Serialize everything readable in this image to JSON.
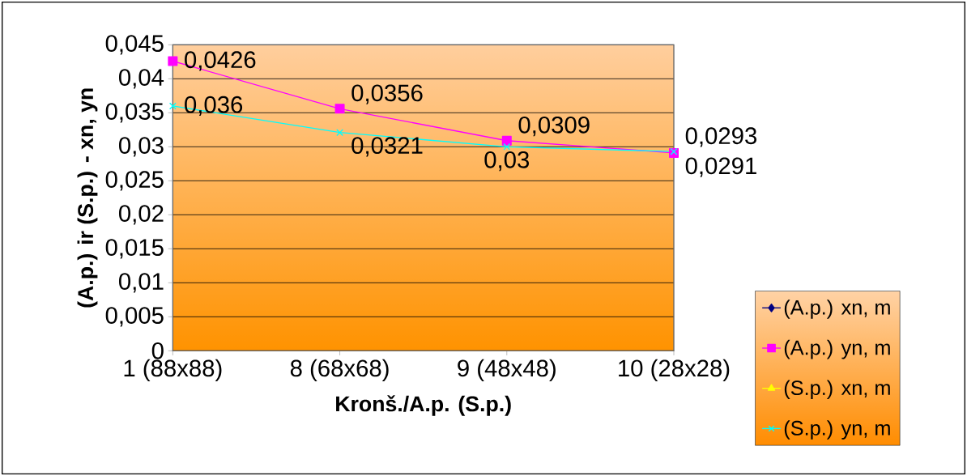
{
  "chart_data": {
    "type": "line",
    "xlabel": "Kronš./A.p. (S.p.)",
    "ylabel": "(A.p.) ir (S.p.) - xn, yn",
    "categories": [
      "1 (88x88)",
      "8 (68x68)",
      "9 (48x48)",
      "10 (28x28)"
    ],
    "series": [
      {
        "name": "(A.p.) xn, m",
        "color": "#000080",
        "marker": "diamond",
        "values": [
          null,
          null,
          null,
          null
        ]
      },
      {
        "name": "(A.p.) yn, m",
        "color": "#ff00ff",
        "marker": "square",
        "values": [
          0.0426,
          0.0356,
          0.0309,
          0.0291
        ],
        "value_labels": [
          "0,0426",
          "0,0356",
          "0,0309",
          "0,0291"
        ]
      },
      {
        "name": "(S.p.) xn, m",
        "color": "#ffff00",
        "marker": "triangle",
        "values": [
          null,
          null,
          null,
          null
        ]
      },
      {
        "name": "(S.p.) yn, m",
        "color": "#00ffff",
        "marker": "cross",
        "values": [
          0.036,
          0.0321,
          0.03,
          0.0293
        ],
        "value_labels": [
          "0,036",
          "0,0321",
          "0,03",
          "0,0293"
        ]
      }
    ],
    "ylim": [
      0,
      0.045
    ],
    "yticks": [
      0,
      {
        "value": 0.005,
        "label": "0,005"
      },
      {
        "value": 0.01,
        "label": "0,01"
      },
      {
        "value": 0.015,
        "label": "0,015"
      },
      {
        "value": 0.02,
        "label": "0,02"
      },
      {
        "value": 0.025,
        "label": "0,025"
      },
      {
        "value": 0.03,
        "label": "0,03"
      },
      {
        "value": 0.035,
        "label": "0,035"
      },
      {
        "value": 0.04,
        "label": "0,04"
      },
      {
        "value": 0.045,
        "label": "0,045"
      }
    ],
    "grid": "y",
    "legend": "right",
    "line_style": "solid"
  }
}
